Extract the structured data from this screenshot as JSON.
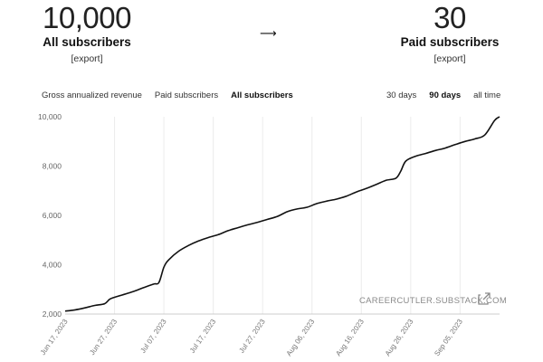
{
  "stats": {
    "left": {
      "number": "10,000",
      "label": "All subscribers",
      "export": "[export]"
    },
    "arrow": "⟶",
    "right": {
      "number": "30",
      "label": "Paid subscribers",
      "export": "[export]"
    }
  },
  "metric_tabs": [
    {
      "label": "Gross annualized revenue",
      "active": false
    },
    {
      "label": "Paid subscribers",
      "active": false
    },
    {
      "label": "All subscribers",
      "active": true
    }
  ],
  "range_tabs": [
    {
      "label": "30 days",
      "active": false
    },
    {
      "label": "90 days",
      "active": true
    },
    {
      "label": "all time",
      "active": false
    }
  ],
  "watermark": "CAREERCUTLER.SUBSTACK.COM",
  "icons": {
    "external": "external-link-icon"
  },
  "chart_data": {
    "type": "line",
    "title": "",
    "xlabel": "",
    "ylabel": "",
    "ylim": [
      2000,
      10000
    ],
    "xlim": [
      "2023-06-17",
      "2023-09-13"
    ],
    "yticks": [
      "2,000",
      "4,000",
      "6,000",
      "8,000",
      "10,000"
    ],
    "ytick_values": [
      2000,
      4000,
      6000,
      8000,
      10000
    ],
    "xticks": [
      "Jun 17, 2023",
      "Jun 27, 2023",
      "Jul 07, 2023",
      "Jul 17, 2023",
      "Jul 27, 2023",
      "Aug 06, 2023",
      "Aug 16, 2023",
      "Aug 26, 2023",
      "Sep 05, 2023"
    ],
    "xtick_dates": [
      "2023-06-17",
      "2023-06-27",
      "2023-07-07",
      "2023-07-17",
      "2023-07-27",
      "2023-08-06",
      "2023-08-16",
      "2023-08-26",
      "2023-09-05"
    ],
    "grid": "vertical",
    "color": "#111111",
    "series": [
      {
        "x": [
          "2023-06-17",
          "2023-06-19",
          "2023-06-21",
          "2023-06-23",
          "2023-06-25",
          "2023-06-26",
          "2023-06-27",
          "2023-06-29",
          "2023-07-01",
          "2023-07-03",
          "2023-07-05",
          "2023-07-06",
          "2023-07-07",
          "2023-07-08",
          "2023-07-10",
          "2023-07-12",
          "2023-07-14",
          "2023-07-16",
          "2023-07-18",
          "2023-07-20",
          "2023-07-22",
          "2023-07-24",
          "2023-07-26",
          "2023-07-28",
          "2023-07-30",
          "2023-08-01",
          "2023-08-03",
          "2023-08-05",
          "2023-08-07",
          "2023-08-09",
          "2023-08-11",
          "2023-08-13",
          "2023-08-15",
          "2023-08-17",
          "2023-08-19",
          "2023-08-21",
          "2023-08-23",
          "2023-08-24",
          "2023-08-25",
          "2023-08-27",
          "2023-08-29",
          "2023-08-31",
          "2023-09-02",
          "2023-09-04",
          "2023-09-06",
          "2023-09-08",
          "2023-09-10",
          "2023-09-12",
          "2023-09-13"
        ],
        "y": [
          2120,
          2170,
          2250,
          2350,
          2420,
          2600,
          2680,
          2800,
          2930,
          3080,
          3220,
          3280,
          3900,
          4200,
          4550,
          4780,
          4960,
          5100,
          5220,
          5380,
          5500,
          5620,
          5720,
          5840,
          5960,
          6150,
          6260,
          6330,
          6480,
          6580,
          6660,
          6780,
          6950,
          7090,
          7250,
          7420,
          7510,
          7800,
          8200,
          8400,
          8510,
          8630,
          8730,
          8870,
          9000,
          9100,
          9260,
          9850,
          10000
        ]
      }
    ]
  }
}
